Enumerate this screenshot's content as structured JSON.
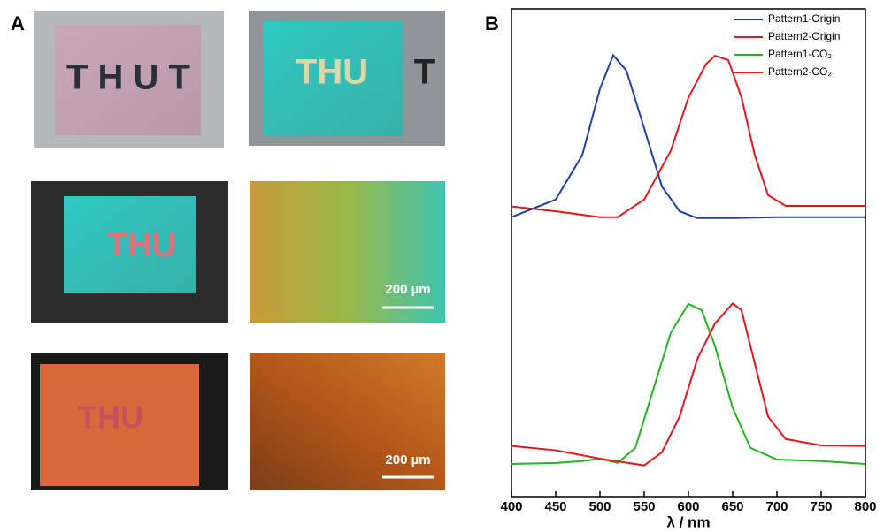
{
  "panel_a": {
    "label": "A",
    "photos": [
      {
        "letters": "T H U T"
      },
      {
        "letters": "THU",
        "outside": "T"
      },
      {
        "letters": "THU"
      },
      {
        "scale_bar": "200 µm"
      },
      {
        "letters": "THU"
      },
      {
        "scale_bar": "200 µm"
      }
    ]
  },
  "chart_data": {
    "type": "line",
    "panel_label": "B",
    "x_label": "λ / nm",
    "xlim": [
      400,
      800
    ],
    "xticks": [
      400,
      450,
      500,
      550,
      600,
      650,
      700,
      750,
      800
    ],
    "ylim": [
      0,
      1
    ],
    "legend": "upper right",
    "series": [
      {
        "name": "Pattern1-Origin",
        "color": "#1f3fa8",
        "x": [
          400,
          450,
          480,
          500,
          515,
          530,
          550,
          570,
          590,
          610,
          650,
          700,
          800
        ],
        "values": [
          0.573,
          0.609,
          0.7,
          0.836,
          0.905,
          0.873,
          0.755,
          0.636,
          0.585,
          0.571,
          0.571,
          0.573,
          0.573
        ]
      },
      {
        "name": "Pattern2-Origin",
        "color": "#e8141c",
        "x": [
          400,
          450,
          500,
          520,
          550,
          580,
          600,
          620,
          630,
          645,
          660,
          675,
          690,
          710,
          800
        ],
        "values": [
          0.595,
          0.585,
          0.573,
          0.573,
          0.609,
          0.709,
          0.818,
          0.887,
          0.904,
          0.895,
          0.818,
          0.7,
          0.618,
          0.596,
          0.596
        ]
      },
      {
        "name": "Pattern1-CO₂",
        "color": "#22b422",
        "x": [
          400,
          450,
          480,
          500,
          520,
          540,
          560,
          580,
          600,
          615,
          630,
          650,
          670,
          700,
          750,
          800
        ],
        "values": [
          0.067,
          0.069,
          0.073,
          0.078,
          0.069,
          0.1,
          0.218,
          0.336,
          0.395,
          0.382,
          0.309,
          0.182,
          0.1,
          0.076,
          0.073,
          0.067
        ]
      },
      {
        "name": "Pattern2-CO₂",
        "color": "#e8141c",
        "x": [
          400,
          450,
          500,
          550,
          570,
          590,
          610,
          630,
          650,
          660,
          675,
          690,
          710,
          750,
          800
        ],
        "values": [
          0.104,
          0.095,
          0.078,
          0.064,
          0.091,
          0.164,
          0.282,
          0.355,
          0.396,
          0.382,
          0.273,
          0.164,
          0.118,
          0.105,
          0.104
        ]
      }
    ]
  }
}
